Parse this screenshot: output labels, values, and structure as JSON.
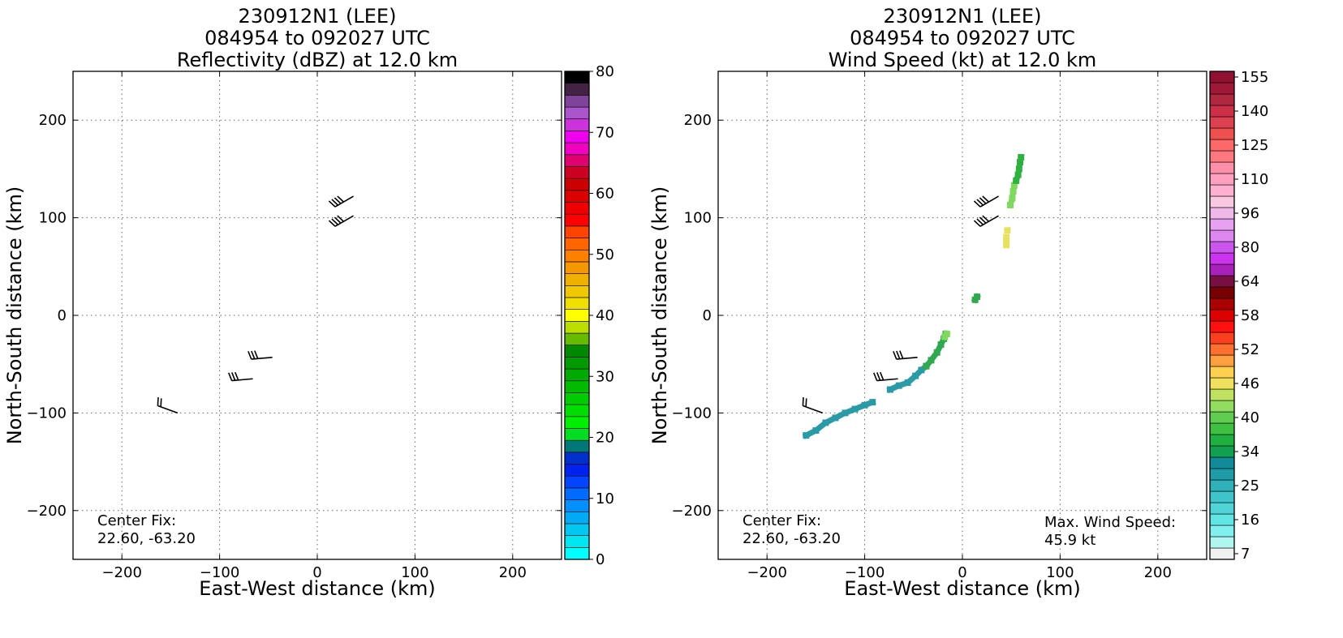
{
  "chart_data": [
    {
      "type": "heatmap",
      "title_lines": [
        "230912N1 (LEE)",
        "084954 to 092027 UTC",
        "Reflectivity (dBZ) at 12.0 km"
      ],
      "xlabel": "East-West distance (km)",
      "ylabel": "North-South distance (km)",
      "xlim": [
        -250,
        250
      ],
      "ylim": [
        -250,
        250
      ],
      "xticks": [
        -200,
        -100,
        0,
        100,
        200
      ],
      "yticks": [
        -200,
        -100,
        0,
        100,
        200
      ],
      "grid": true,
      "colorbar": {
        "min": 0,
        "max": 80,
        "ticks": [
          "0",
          "10",
          "20",
          "30",
          "40",
          "50",
          "60",
          "70",
          "80"
        ],
        "colors": [
          "#00ffff",
          "#00e6f0",
          "#00c8f0",
          "#00aaf5",
          "#0090ff",
          "#006cff",
          "#0044ff",
          "#0022ee",
          "#0030cc",
          "#007878",
          "#00dd22",
          "#00ee00",
          "#00dd00",
          "#00cc00",
          "#00bb00",
          "#00aa00",
          "#009900",
          "#008800",
          "#66bb00",
          "#bbdd00",
          "#ffff00",
          "#f0e000",
          "#f0c800",
          "#f0b000",
          "#f59800",
          "#ff8000",
          "#ff6600",
          "#ff4400",
          "#ff0000",
          "#ee0000",
          "#dd0000",
          "#cc0000",
          "#cc0022",
          "#e00070",
          "#f000c0",
          "#ee00ee",
          "#cc33dd",
          "#aa55cc",
          "#7f4499",
          "#442244",
          "#000000"
        ]
      },
      "annotations": [
        {
          "label": "Center Fix:",
          "value": "22.60, -63.20"
        }
      ],
      "wind_barbs": [
        {
          "x": 37,
          "y": 122,
          "dir_deg": 240,
          "speed_kt": 40
        },
        {
          "x": 37,
          "y": 102,
          "dir_deg": 240,
          "speed_kt": 40
        },
        {
          "x": -46,
          "y": -43,
          "dir_deg": 265,
          "speed_kt": 30
        },
        {
          "x": -66,
          "y": -65,
          "dir_deg": 265,
          "speed_kt": 30
        },
        {
          "x": -143,
          "y": -100,
          "dir_deg": 290,
          "speed_kt": 20
        }
      ],
      "data_regions": []
    },
    {
      "type": "heatmap",
      "title_lines": [
        "230912N1 (LEE)",
        "084954 to 092027 UTC",
        "Wind Speed (kt) at 12.0 km"
      ],
      "xlabel": "East-West distance (km)",
      "ylabel": "North-South distance (km)",
      "xlim": [
        -250,
        250
      ],
      "ylim": [
        -250,
        250
      ],
      "xticks": [
        -200,
        -100,
        0,
        100,
        200
      ],
      "yticks": [
        -200,
        -100,
        0,
        100,
        200
      ],
      "grid": true,
      "colorbar": {
        "ticks": [
          "7",
          "16",
          "25",
          "34",
          "40",
          "46",
          "52",
          "58",
          "64",
          "80",
          "96",
          "110",
          "125",
          "140",
          "155"
        ],
        "tick_bins": [
          0,
          3,
          6,
          9,
          12,
          15,
          18,
          21,
          24,
          27,
          30,
          33,
          36,
          39,
          42
        ],
        "colors": [
          "#f0f0f0",
          "#b0f5f0",
          "#80f0ee",
          "#60e4e4",
          "#50d4d8",
          "#40c4cc",
          "#30b0b8",
          "#209ca8",
          "#108c98",
          "#10a050",
          "#20b040",
          "#40c040",
          "#60cc50",
          "#90dd60",
          "#c0e060",
          "#f0e060",
          "#ffd050",
          "#ffa040",
          "#ff7030",
          "#ff4020",
          "#ff1010",
          "#dd0000",
          "#aa0000",
          "#770000",
          "#771040",
          "#aa20bb",
          "#cc33ee",
          "#cc55ee",
          "#dd88ee",
          "#e8a0f0",
          "#f0b8e8",
          "#f8c8e0",
          "#ffb0d0",
          "#ffa0c0",
          "#ff90a8",
          "#ff7880",
          "#ff6868",
          "#ee5050",
          "#dd4050",
          "#cc3048",
          "#b02840",
          "#a01838",
          "#901030"
        ]
      },
      "annotations": [
        {
          "label": "Center Fix:",
          "value": "22.60, -63.20"
        },
        {
          "label": "Max. Wind Speed:",
          "value": "45.9 kt"
        }
      ],
      "wind_barbs": [
        {
          "x": 37,
          "y": 122,
          "dir_deg": 240,
          "speed_kt": 40
        },
        {
          "x": 37,
          "y": 102,
          "dir_deg": 240,
          "speed_kt": 40
        },
        {
          "x": -46,
          "y": -43,
          "dir_deg": 265,
          "speed_kt": 30
        },
        {
          "x": -66,
          "y": -65,
          "dir_deg": 265,
          "speed_kt": 30
        },
        {
          "x": -143,
          "y": -100,
          "dir_deg": 290,
          "speed_kt": 20
        }
      ],
      "data_regions": [
        {
          "color": "#2a9aa6",
          "points": [
            [
              -160,
              -123
            ],
            [
              -150,
              -118
            ],
            [
              -140,
              -110
            ],
            [
              -130,
              -105
            ],
            [
              -120,
              -100
            ],
            [
              -110,
              -96
            ],
            [
              -100,
              -92
            ],
            [
              -92,
              -89
            ]
          ]
        },
        {
          "color": "#2a9aa6",
          "points": [
            [
              -74,
              -76
            ],
            [
              -65,
              -72
            ],
            [
              -56,
              -69
            ],
            [
              -48,
              -62
            ],
            [
              -42,
              -56
            ],
            [
              -37,
              -52
            ]
          ]
        },
        {
          "color": "#30a850",
          "points": [
            [
              -37,
              -52
            ],
            [
              -32,
              -46
            ],
            [
              -26,
              -38
            ],
            [
              -22,
              -30
            ],
            [
              -19,
              -24
            ],
            [
              -17,
              -19
            ]
          ]
        },
        {
          "color": "#80d860",
          "points": [
            [
              -18,
              -22
            ],
            [
              -16,
              -19
            ]
          ]
        },
        {
          "color": "#30a850",
          "points": [
            [
              13,
              16
            ],
            [
              15,
              19
            ]
          ]
        },
        {
          "color": "#e8e060",
          "points": [
            [
              45,
              72
            ],
            [
              45,
              76
            ],
            [
              45,
              80
            ]
          ]
        },
        {
          "color": "#e8e060",
          "points": [
            [
              46,
              87
            ]
          ]
        },
        {
          "color": "#80d860",
          "points": [
            [
              49,
              113
            ],
            [
              51,
              120
            ],
            [
              52,
              127
            ],
            [
              53,
              133
            ]
          ]
        },
        {
          "color": "#30b040",
          "points": [
            [
              55,
              138
            ],
            [
              57,
              144
            ],
            [
              58,
              150
            ],
            [
              59,
              157
            ],
            [
              60,
              162
            ]
          ]
        }
      ]
    }
  ]
}
